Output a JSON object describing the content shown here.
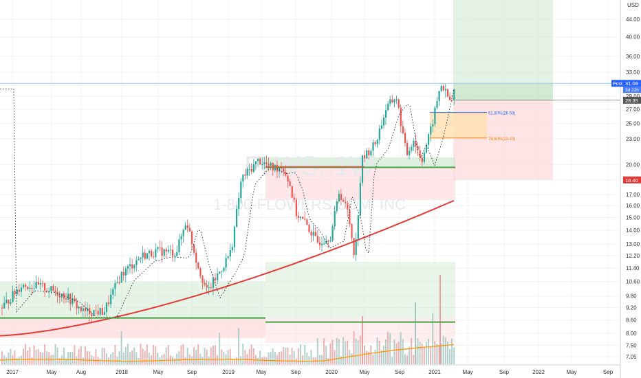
{
  "chart_data": {
    "type": "candlestick",
    "symbol_watermark": "FLWS, 1W",
    "company_watermark": "1-800-FLOWERS.COM, INC",
    "currency": "USD",
    "y_scale": "log",
    "y_ticks": [
      "44.00",
      "40.00",
      "36.00",
      "33.00",
      "31.00",
      "29.00",
      "27.00",
      "25.00",
      "23.00",
      "20.00",
      "18.40",
      "17.00",
      "16.00",
      "15.00",
      "14.00",
      "13.00",
      "12.20",
      "11.40",
      "10.60",
      "9.80",
      "9.20",
      "8.60",
      "8.00",
      "7.50",
      "7.05"
    ],
    "x_ticks": [
      "2017",
      "May",
      "Aug",
      "2018",
      "May",
      "Sep",
      "2019",
      "May",
      "Sep",
      "2020",
      "May",
      "Sep",
      "2021",
      "May",
      "Sep",
      "2022",
      "May",
      "Sep"
    ],
    "price_labels": {
      "post_label": "Post",
      "post_value": "31.08",
      "countdown": "3d 22h",
      "last_close": "28.35",
      "stop_level": "18.40"
    },
    "fib_levels": [
      {
        "label": "61.80%(26.53)",
        "value": 26.53,
        "color": "#2962ff"
      },
      {
        "label": "78.60%(23.10)",
        "value": 23.1,
        "color": "#f57c00"
      }
    ],
    "support_lines": [
      19.7,
      8.7
    ],
    "colors": {
      "up": "#26a69a",
      "down": "#ef5350",
      "ma200": "#e53935",
      "volume_ma": "#ff9800",
      "horizontal_support": "#43a047",
      "target_zone": "#c8e6c9",
      "stop_zone": "#ffcdd2",
      "fib_zone": "#ffe0b2"
    },
    "series": []
  }
}
